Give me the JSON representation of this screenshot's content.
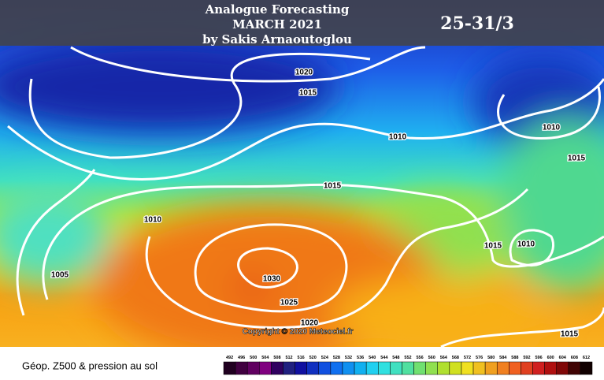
{
  "header": {
    "title_lines": [
      "Analogue Forecasting",
      "MARCH 2021",
      "by Sakis Arnaoutoglou"
    ],
    "period": "25-31/3"
  },
  "isobar_labels": [
    "1020",
    "1015",
    "1010",
    "1010",
    "1015",
    "1015",
    "1010",
    "1015",
    "1010",
    "1005",
    "1030",
    "1025",
    "1020",
    "1015"
  ],
  "copyright": "Copyright © 2020 Meteociel.fr",
  "legend": {
    "title": "Géop. Z500 & pression au sol",
    "scale": [
      "492",
      "496",
      "500",
      "504",
      "508",
      "512",
      "516",
      "520",
      "524",
      "528",
      "532",
      "536",
      "540",
      "544",
      "548",
      "552",
      "556",
      "560",
      "564",
      "568",
      "572",
      "576",
      "580",
      "584",
      "588",
      "592",
      "596",
      "600",
      "604",
      "608",
      "612"
    ]
  }
}
